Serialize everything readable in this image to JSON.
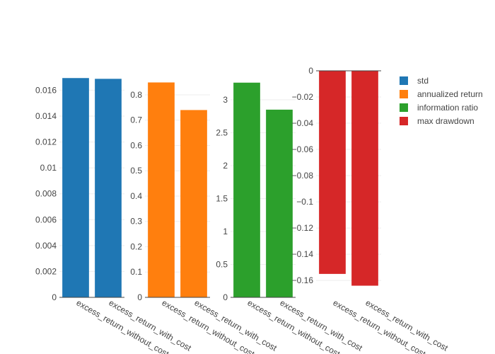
{
  "chart_data": [
    {
      "type": "bar",
      "categories": [
        "excess_return_without_cost",
        "excess_return_with_cost"
      ],
      "series": [
        {
          "name": "std",
          "values": [
            0.01694,
            0.01688
          ]
        }
      ],
      "color": "#1f77b4",
      "ylim": [
        0,
        0.0175
      ],
      "yticks": [
        0,
        0.002,
        0.004,
        0.006,
        0.008,
        0.01,
        0.012,
        0.014,
        0.016
      ],
      "ytick_labels": [
        "0",
        "0.002",
        "0.004",
        "0.006",
        "0.008",
        "0.01",
        "0.012",
        "0.014",
        "0.016"
      ]
    },
    {
      "type": "bar",
      "categories": [
        "excess_return_without_cost",
        "excess_return_with_cost"
      ],
      "series": [
        {
          "name": "annualized return",
          "values": [
            0.849,
            0.74
          ]
        }
      ],
      "color": "#ff7f0e",
      "ylim": [
        0,
        0.895
      ],
      "yticks": [
        0,
        0.1,
        0.2,
        0.3,
        0.4,
        0.5,
        0.6,
        0.7,
        0.8
      ],
      "ytick_labels": [
        "0",
        "0.1",
        "0.2",
        "0.3",
        "0.4",
        "0.5",
        "0.6",
        "0.7",
        "0.8"
      ]
    },
    {
      "type": "bar",
      "categories": [
        "excess_return_without_cost",
        "excess_return_with_cost"
      ],
      "series": [
        {
          "name": "information ratio",
          "values": [
            3.26,
            2.85
          ]
        }
      ],
      "color": "#2ca02c",
      "ylim": [
        0,
        3.44
      ],
      "yticks": [
        0,
        0.5,
        1,
        1.5,
        2,
        2.5,
        3
      ],
      "ytick_labels": [
        "0",
        "0.5",
        "1",
        "1.5",
        "2",
        "2.5",
        "3"
      ]
    },
    {
      "type": "bar",
      "categories": [
        "excess_return_without_cost",
        "excess_return_with_cost"
      ],
      "series": [
        {
          "name": "max drawdown",
          "values": [
            -0.155,
            -0.164
          ]
        }
      ],
      "color": "#d62728",
      "ylim": [
        -0.1729,
        0
      ],
      "yticks": [
        0,
        -0.02,
        -0.04,
        -0.06,
        -0.08,
        -0.1,
        -0.12,
        -0.14,
        -0.16
      ],
      "ytick_labels": [
        "0",
        "−0.02",
        "−0.04",
        "−0.06",
        "−0.08",
        "−0.1",
        "−0.12",
        "−0.14",
        "−0.16"
      ]
    }
  ],
  "legend": {
    "placement": "top-right",
    "items": [
      {
        "label": "std",
        "color": "#1f77b4"
      },
      {
        "label": "annualized return",
        "color": "#ff7f0e"
      },
      {
        "label": "information ratio",
        "color": "#2ca02c"
      },
      {
        "label": "max drawdown",
        "color": "#d62728"
      }
    ]
  }
}
